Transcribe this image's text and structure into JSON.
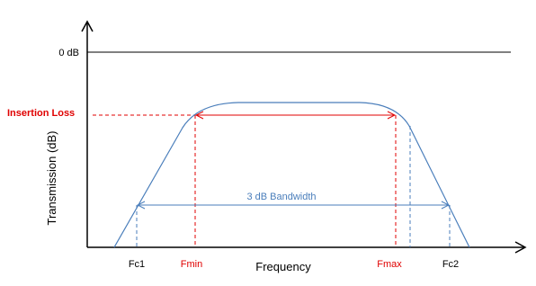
{
  "axes": {
    "y_label": "Transmission (dB)",
    "x_label": "Frequency"
  },
  "levels": {
    "zero": "0 dB",
    "insertion_loss": "Insertion Loss"
  },
  "bandwidth_label": "3 dB Bandwidth",
  "markers": [
    "Fc1",
    "Fmin",
    "Fmax",
    "Fc2"
  ]
}
